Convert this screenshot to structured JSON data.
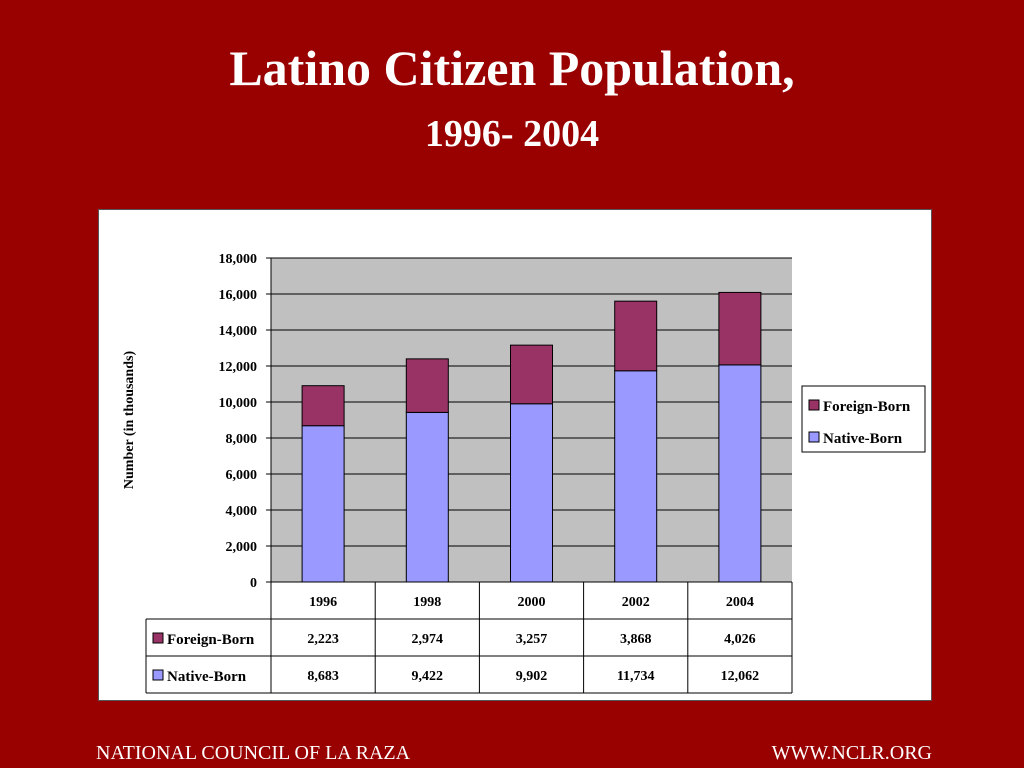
{
  "slide": {
    "title": "Latino Citizen Population,",
    "subtitle": "1996- 2004",
    "footer_left": "NATIONAL COUNCIL OF LA RAZA",
    "footer_right": "WWW.NCLR.ORG",
    "background_color": "#990000"
  },
  "chart_data": {
    "type": "bar",
    "stacked": true,
    "title": "",
    "xlabel": "",
    "ylabel": "Number (in thousands)",
    "ylim": [
      0,
      18000
    ],
    "yticks": [
      0,
      2000,
      4000,
      6000,
      8000,
      10000,
      12000,
      14000,
      16000,
      18000
    ],
    "ytick_labels": [
      "0",
      "2,000",
      "4,000",
      "6,000",
      "8,000",
      "10,000",
      "12,000",
      "14,000",
      "16,000",
      "18,000"
    ],
    "categories": [
      "1996",
      "1998",
      "2000",
      "2002",
      "2004"
    ],
    "series": [
      {
        "name": "Native-Born",
        "color": "#9999ff",
        "values": [
          8683,
          9422,
          9902,
          11734,
          12062
        ],
        "labels": [
          "8,683",
          "9,422",
          "9,902",
          "11,734",
          "12,062"
        ]
      },
      {
        "name": "Foreign-Born",
        "color": "#993366",
        "values": [
          2223,
          2974,
          3257,
          3868,
          4026
        ],
        "labels": [
          "2,223",
          "2,974",
          "3,257",
          "3,868",
          "4,026"
        ]
      }
    ],
    "legend": {
      "placement": "right",
      "entries": [
        "Foreign-Born",
        "Native-Born"
      ]
    },
    "data_table": {
      "rows": [
        "Foreign-Born",
        "Native-Born"
      ]
    },
    "grid": true,
    "plot_background": "#c0c0c0"
  }
}
